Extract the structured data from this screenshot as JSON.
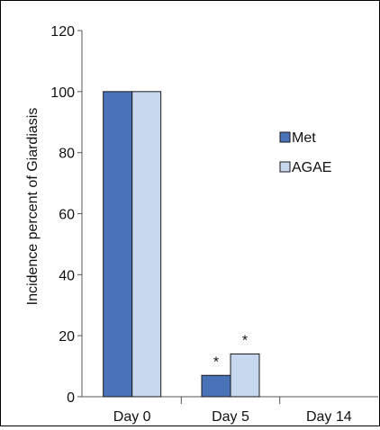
{
  "chart_data": {
    "type": "bar",
    "categories": [
      "Day 0",
      "Day 5",
      "Day 14"
    ],
    "series": [
      {
        "name": "Met",
        "values": [
          100,
          7,
          0
        ],
        "color": "#4a72b8"
      },
      {
        "name": "AGAE",
        "values": [
          100,
          14,
          0
        ],
        "color": "#c6d7ee"
      }
    ],
    "annotations": [
      {
        "series": 0,
        "category": 1,
        "text": "*"
      },
      {
        "series": 1,
        "category": 1,
        "text": "*"
      }
    ],
    "title": "",
    "xlabel": "",
    "ylabel": "Incidence percent of Giardiasis",
    "ylim": [
      0,
      120
    ],
    "yticks": [
      0,
      20,
      40,
      60,
      80,
      100,
      120
    ],
    "grid": false,
    "legend": "right"
  }
}
